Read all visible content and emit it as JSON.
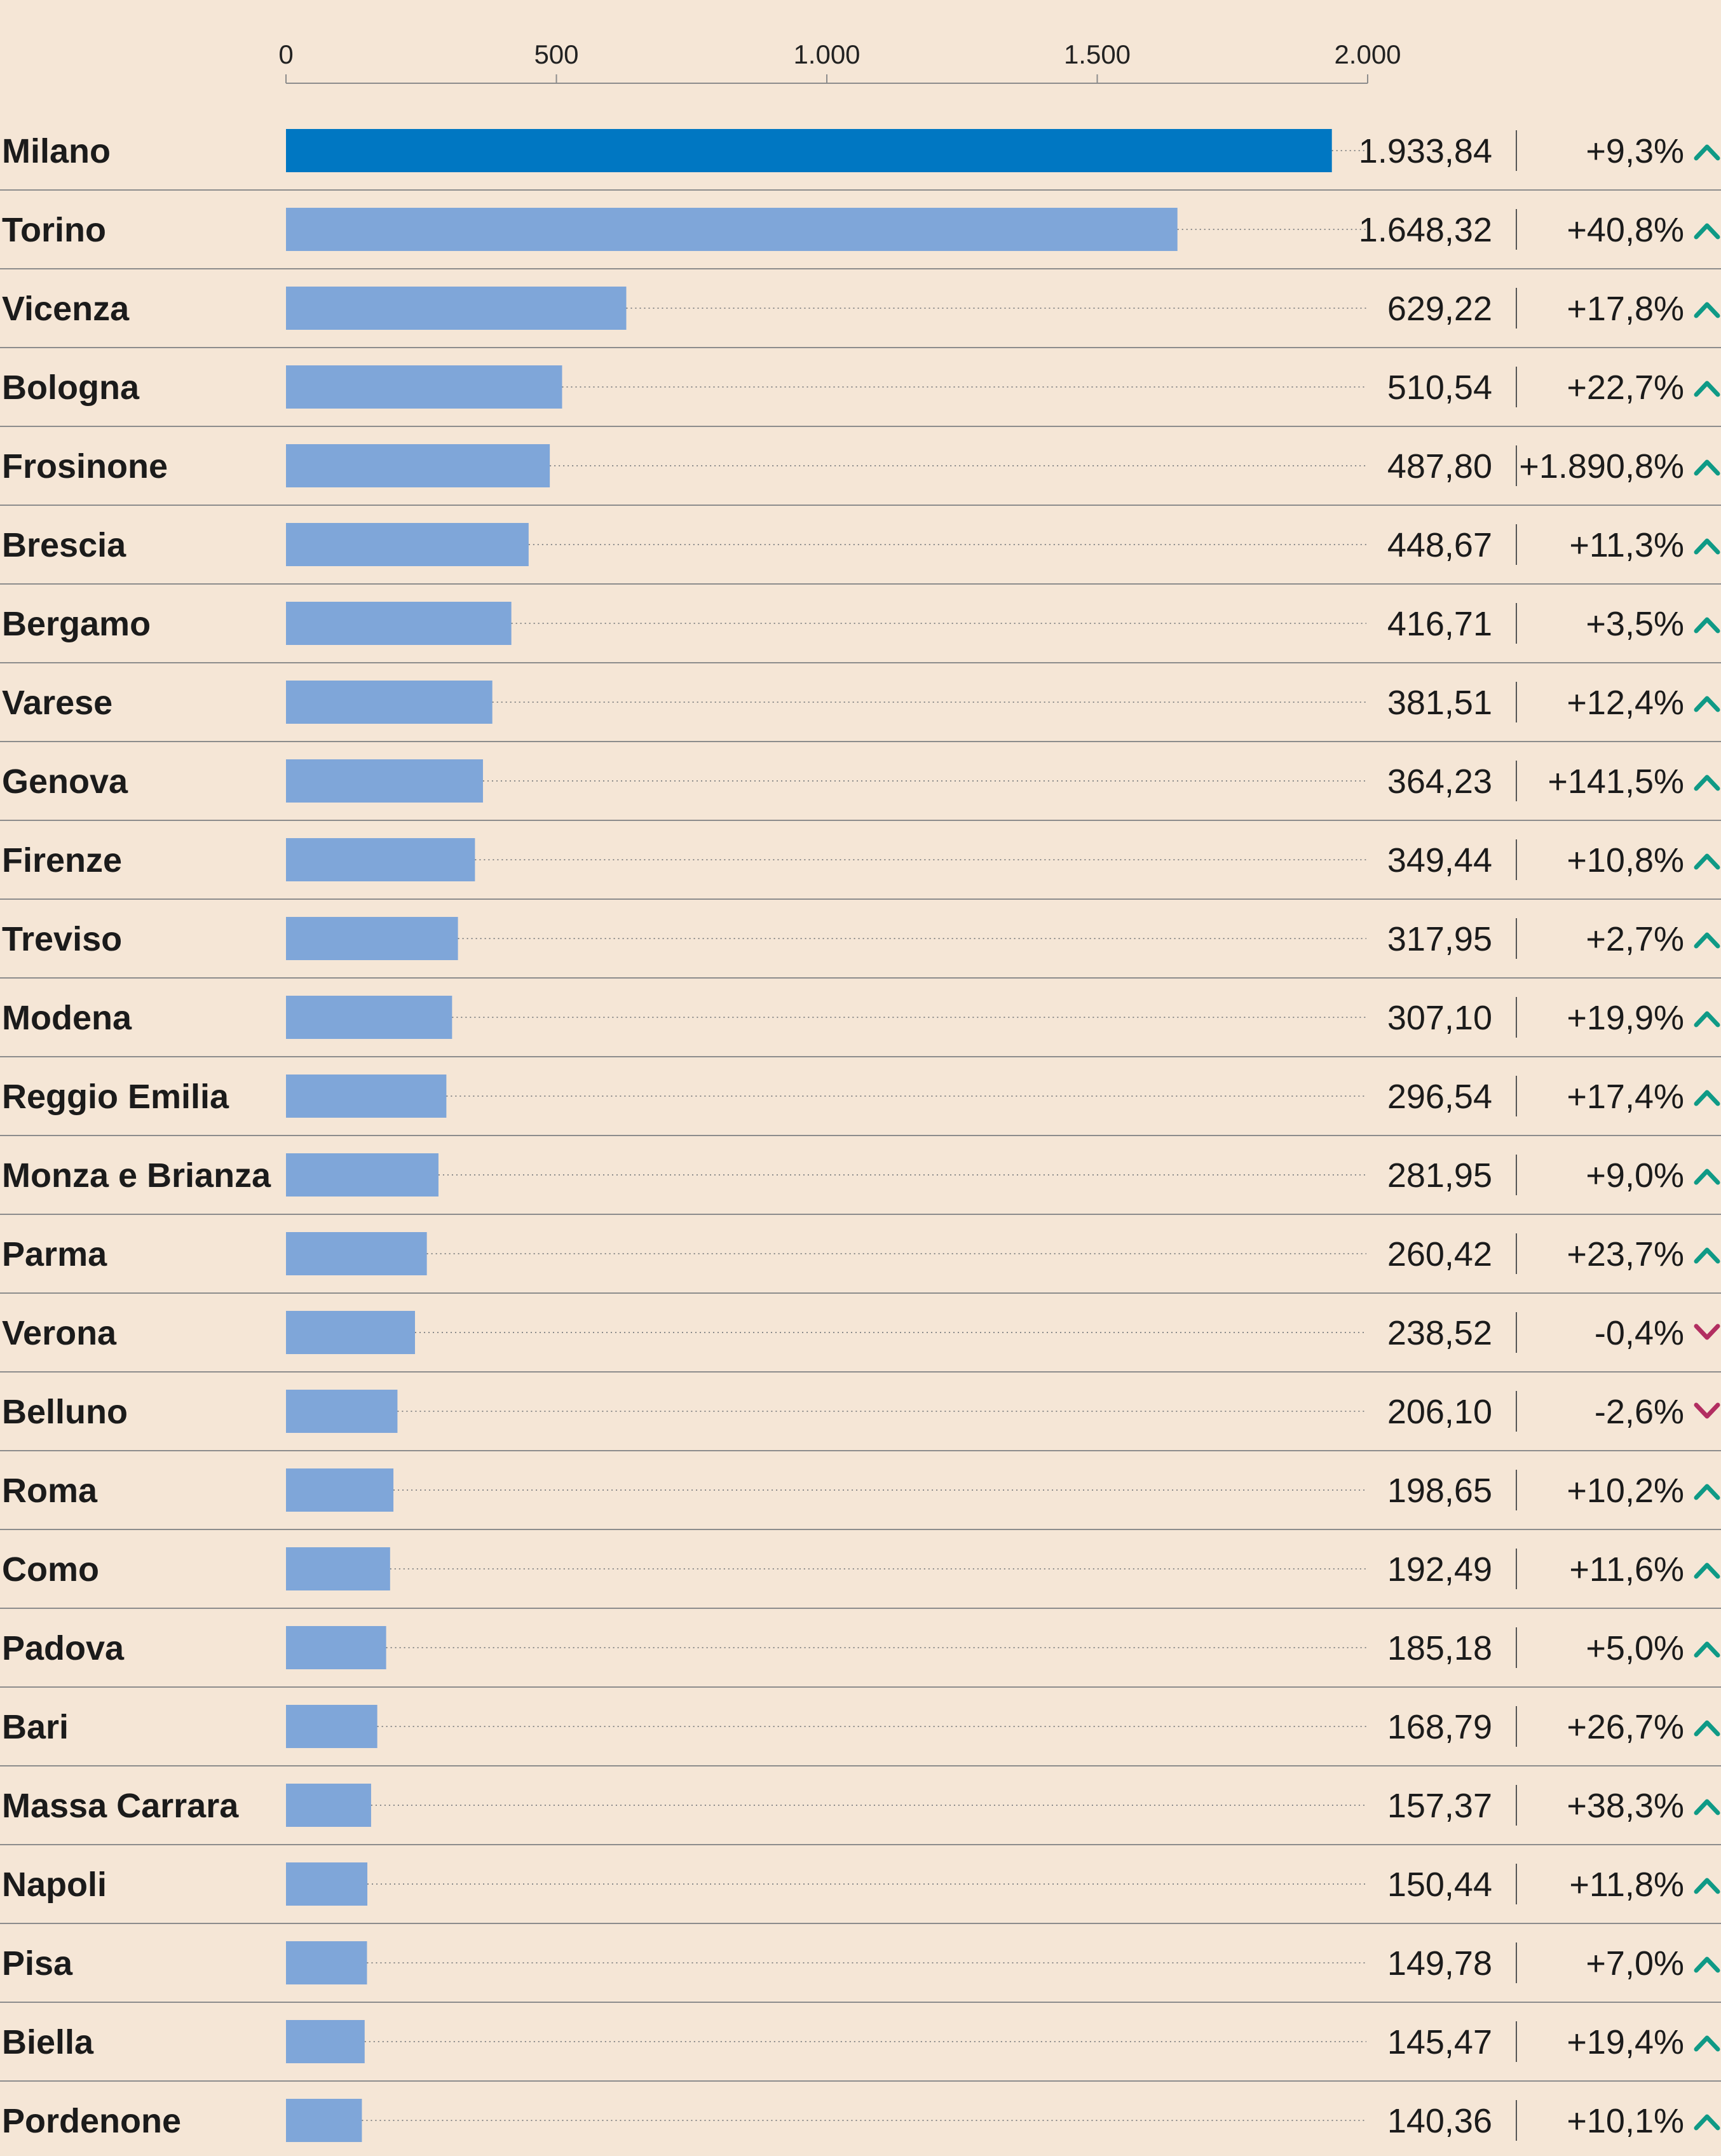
{
  "chart_data": {
    "type": "bar",
    "orientation": "horizontal",
    "axis_ticks": [
      {
        "value": 0,
        "label": "0"
      },
      {
        "value": 500,
        "label": "500"
      },
      {
        "value": 1000,
        "label": "1.000"
      },
      {
        "value": 1500,
        "label": "1.500"
      },
      {
        "value": 2000,
        "label": "2.000"
      }
    ],
    "xlim": [
      0,
      2000
    ],
    "grid": false,
    "colors": {
      "highlight": "#0077c2",
      "bar": "#7fa6d9",
      "up": "#0f9a86",
      "down": "#b22e61",
      "rule": "#8c8c8c",
      "leader": "#8a8a8a",
      "background": "#f5e6d6"
    },
    "categories": [
      "Milano",
      "Torino",
      "Vicenza",
      "Bologna",
      "Frosinone",
      "Brescia",
      "Bergamo",
      "Varese",
      "Genova",
      "Firenze",
      "Treviso",
      "Modena",
      "Reggio Emilia",
      "Monza e Brianza",
      "Parma",
      "Verona",
      "Belluno",
      "Roma",
      "Como",
      "Padova",
      "Bari",
      "Massa Carrara",
      "Napoli",
      "Pisa",
      "Biella",
      "Pordenone"
    ],
    "values": [
      1933.84,
      1648.32,
      629.22,
      510.54,
      487.8,
      448.67,
      416.71,
      381.51,
      364.23,
      349.44,
      317.95,
      307.1,
      296.54,
      281.95,
      260.42,
      238.52,
      206.1,
      198.65,
      192.49,
      185.18,
      168.79,
      157.37,
      150.44,
      149.78,
      145.47,
      140.36
    ],
    "value_labels": [
      "1.933,84",
      "1.648,32",
      "629,22",
      "510,54",
      "487,80",
      "448,67",
      "416,71",
      "381,51",
      "364,23",
      "349,44",
      "317,95",
      "307,10",
      "296,54",
      "281,95",
      "260,42",
      "238,52",
      "206,10",
      "198,65",
      "192,49",
      "185,18",
      "168,79",
      "157,37",
      "150,44",
      "149,78",
      "145,47",
      "140,36"
    ],
    "changes": [
      "+9,3%",
      "+40,8%",
      "+17,8%",
      "+22,7%",
      "+1.890,8%",
      "+11,3%",
      "+3,5%",
      "+12,4%",
      "+141,5%",
      "+10,8%",
      "+2,7%",
      "+19,9%",
      "+17,4%",
      "+9,0%",
      "+23,7%",
      "-0,4%",
      "-2,6%",
      "+10,2%",
      "+11,6%",
      "+5,0%",
      "+26,7%",
      "+38,3%",
      "+11,8%",
      "+7,0%",
      "+19,4%",
      "+10,1%"
    ],
    "change_directions": [
      "up",
      "up",
      "up",
      "up",
      "up",
      "up",
      "up",
      "up",
      "up",
      "up",
      "up",
      "up",
      "up",
      "up",
      "up",
      "down",
      "down",
      "up",
      "up",
      "up",
      "up",
      "up",
      "up",
      "up",
      "up",
      "up"
    ],
    "highlight_index": 0
  }
}
